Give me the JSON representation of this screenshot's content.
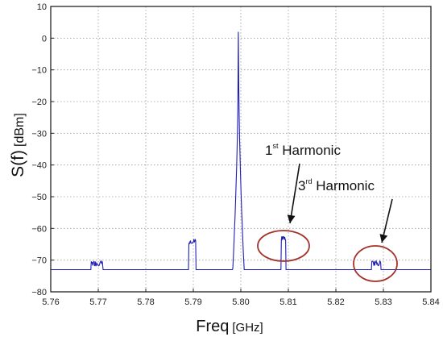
{
  "chart_data": {
    "type": "line",
    "title": "",
    "xlabel": "Freq",
    "xlabel_unit": "[GHz]",
    "ylabel": "S(f)",
    "ylabel_unit": "[dBm]",
    "xlim": [
      5.76,
      5.84
    ],
    "ylim": [
      -80,
      10
    ],
    "x_ticks": [
      "5.76",
      "5.77",
      "5.78",
      "5.79",
      "5.80",
      "5.81",
      "5.82",
      "5.83",
      "5.84"
    ],
    "y_ticks": [
      "10",
      "0",
      "−10",
      "−20",
      "−30",
      "−40",
      "−50",
      "−60",
      "−70",
      "−80"
    ],
    "grid": true,
    "line_color": "#1f1fb4",
    "noise_floor": -77.5,
    "series": [
      {
        "color": "#1f1fb4",
        "peaks": [
          {
            "x": 5.7995,
            "y": 2,
            "kind": "spike"
          },
          {
            "x_start": 5.789,
            "x_end": 5.7905,
            "y": -64,
            "kind": "block"
          },
          {
            "x_start": 5.7685,
            "x_end": 5.771,
            "y": -71,
            "kind": "block"
          },
          {
            "x_start": 5.8085,
            "x_end": 5.8095,
            "y": -63,
            "kind": "block"
          },
          {
            "x_start": 5.8275,
            "x_end": 5.8295,
            "y": -71,
            "kind": "block"
          }
        ]
      }
    ],
    "annotations": [
      {
        "label": "1",
        "sup": "st",
        "rest": " Harmonic",
        "target_x": 5.809,
        "target_y": -63
      },
      {
        "label": "3",
        "sup": "rd",
        "rest": " Harmonic",
        "target_x": 5.8285,
        "target_y": -71
      }
    ],
    "ellipse_color": "#a3322a"
  }
}
